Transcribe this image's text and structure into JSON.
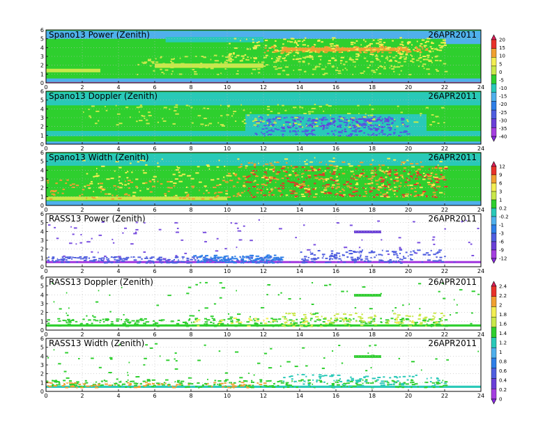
{
  "chart_data": [
    {
      "type": "heatmap",
      "title": "Spano13 Power (Zenith)",
      "date": "26APR2011",
      "background": "#2ecf2e",
      "x_ticks": [
        "0",
        "2",
        "4",
        "6",
        "8",
        "10",
        "12",
        "14",
        "16",
        "18",
        "20",
        "22",
        "24"
      ],
      "y_ticks": [
        "0",
        "1",
        "2",
        "3",
        "4",
        "5",
        "6"
      ],
      "xlim": [
        0,
        24
      ],
      "ylim": [
        0,
        6
      ],
      "colorbar": 0,
      "regions": [
        {
          "x0": 0,
          "x1": 24,
          "y0": 5.0,
          "y1": 5.9,
          "color": "#4fb0ec"
        },
        {
          "x0": 6.6,
          "x1": 12,
          "y0": 4.6,
          "y1": 5.2,
          "color": "#29c9b8"
        },
        {
          "x0": 0,
          "x1": 24,
          "y0": 0.1,
          "y1": 0.5,
          "color": "#4fb0ec"
        },
        {
          "x0": 0,
          "x1": 24,
          "y0": 0.0,
          "y1": 0.1,
          "color": "#d85ad0"
        },
        {
          "x0": 13,
          "x1": 20,
          "y0": 3.6,
          "y1": 4.0,
          "color": "#f0a030"
        },
        {
          "x0": 6,
          "x1": 12,
          "y0": 1.7,
          "y1": 2.2,
          "color": "#c9e84a"
        },
        {
          "x0": 0,
          "x1": 3,
          "y0": 1.2,
          "y1": 1.6,
          "color": "#c9e84a"
        },
        {
          "x0": 22,
          "x1": 24,
          "y0": 4.4,
          "y1": 5.0,
          "color": "#4fb0ec"
        }
      ],
      "scatter": [
        {
          "x0": 10,
          "x1": 22,
          "y0": 2.5,
          "y1": 5.2,
          "color": "#f3ee52",
          "count": 260
        },
        {
          "x0": 5,
          "x1": 22,
          "y0": 1.0,
          "y1": 3.2,
          "color": "#c9e84a",
          "count": 220
        },
        {
          "x0": 12,
          "x1": 21,
          "y0": 3.5,
          "y1": 4.2,
          "color": "#f0a030",
          "count": 120
        }
      ]
    },
    {
      "type": "heatmap",
      "title": "Spano13 Doppler (Zenith)",
      "date": "26APR2011",
      "background": "#2ecf2e",
      "x_ticks": [
        "0",
        "2",
        "4",
        "6",
        "8",
        "10",
        "12",
        "14",
        "16",
        "18",
        "20",
        "22",
        "24"
      ],
      "y_ticks": [
        "0",
        "1",
        "2",
        "3",
        "4",
        "5",
        "6"
      ],
      "xlim": [
        0,
        24
      ],
      "ylim": [
        0,
        6
      ],
      "colorbar": 0,
      "regions": [
        {
          "x0": 0,
          "x1": 24,
          "y0": 4.4,
          "y1": 5.9,
          "color": "#29c9b8"
        },
        {
          "x0": 0,
          "x1": 24,
          "y0": 0.9,
          "y1": 1.5,
          "color": "#29c9b8"
        },
        {
          "x0": 0,
          "x1": 24,
          "y0": 0.0,
          "y1": 0.3,
          "color": "#4fb0ec"
        },
        {
          "x0": 11,
          "x1": 21,
          "y0": 1.5,
          "y1": 3.4,
          "color": "#29c9b8"
        }
      ],
      "scatter": [
        {
          "x0": 11.5,
          "x1": 20,
          "y0": 1.0,
          "y1": 3.2,
          "color": "#4f5ee0",
          "count": 240
        },
        {
          "x0": 13,
          "x1": 19,
          "y0": 1.5,
          "y1": 3.0,
          "color": "#6a3fd8",
          "count": 70
        },
        {
          "x0": 2,
          "x1": 22,
          "y0": 2.0,
          "y1": 4.6,
          "color": "#c9e84a",
          "count": 160
        }
      ]
    },
    {
      "type": "heatmap",
      "title": "Spano13 Width (Zenith)",
      "date": "26APR2011",
      "background": "#2ecf2e",
      "x_ticks": [
        "0",
        "2",
        "4",
        "6",
        "8",
        "10",
        "12",
        "14",
        "16",
        "18",
        "20",
        "22",
        "24"
      ],
      "y_ticks": [
        "0",
        "1",
        "2",
        "3",
        "4",
        "5",
        "6"
      ],
      "xlim": [
        0,
        24
      ],
      "ylim": [
        0,
        6
      ],
      "colorbar": 1,
      "regions": [
        {
          "x0": 0,
          "x1": 24,
          "y0": 4.5,
          "y1": 5.9,
          "color": "#29c9b8"
        },
        {
          "x0": 0,
          "x1": 24,
          "y0": 0.0,
          "y1": 0.5,
          "color": "#4fb0ec"
        },
        {
          "x0": 0,
          "x1": 10,
          "y0": 0.6,
          "y1": 1.0,
          "color": "#c9e84a"
        }
      ],
      "scatter": [
        {
          "x0": 10,
          "x1": 22,
          "y0": 1.0,
          "y1": 5.0,
          "color": "#f0a030",
          "count": 260
        },
        {
          "x0": 11,
          "x1": 22,
          "y0": 1.0,
          "y1": 4.5,
          "color": "#e8322a",
          "count": 190
        },
        {
          "x0": 0,
          "x1": 10,
          "y0": 0.7,
          "y1": 3.0,
          "color": "#f0a030",
          "count": 90
        },
        {
          "x0": 2,
          "x1": 22,
          "y0": 1.0,
          "y1": 5.5,
          "color": "#f3ee52",
          "count": 200
        }
      ]
    },
    {
      "type": "heatmap",
      "title": "RASS13 Power (Zenith)",
      "date": "26APR2011",
      "background": "#ffffff",
      "x_ticks": [
        "0",
        "2",
        "4",
        "6",
        "8",
        "10",
        "12",
        "14",
        "16",
        "18",
        "20",
        "22",
        "24"
      ],
      "y_ticks": [
        "0",
        "1",
        "2",
        "3",
        "4",
        "5",
        "6"
      ],
      "xlim": [
        0,
        24
      ],
      "ylim": [
        0,
        6
      ],
      "colorbar": 1,
      "regions": [
        {
          "x0": 0,
          "x1": 24,
          "y0": 0.4,
          "y1": 0.65,
          "color": "#a53fe0"
        },
        {
          "x0": 17,
          "x1": 18.5,
          "y0": 3.8,
          "y1": 4.1,
          "color": "#6a3fd8"
        }
      ],
      "scatter": [
        {
          "x0": 0,
          "x1": 13,
          "y0": 0.5,
          "y1": 1.2,
          "color": "#4f5ee0",
          "count": 240
        },
        {
          "x0": 8,
          "x1": 13,
          "y0": 0.5,
          "y1": 1.4,
          "color": "#2e7fe8",
          "count": 120
        },
        {
          "x0": 14,
          "x1": 22,
          "y0": 0.5,
          "y1": 2.0,
          "color": "#4f5ee0",
          "count": 160
        },
        {
          "x0": 0,
          "x1": 24,
          "y0": 0.5,
          "y1": 5.5,
          "color": "#7a4fe0",
          "count": 90
        }
      ]
    },
    {
      "type": "heatmap",
      "title": "RASS13 Doppler (Zenith)",
      "date": "26APR2011",
      "background": "#ffffff",
      "x_ticks": [
        "0",
        "2",
        "4",
        "6",
        "8",
        "10",
        "12",
        "14",
        "16",
        "18",
        "20",
        "22",
        "24"
      ],
      "y_ticks": [
        "0",
        "1",
        "2",
        "3",
        "4",
        "5",
        "6"
      ],
      "xlim": [
        0,
        24
      ],
      "ylim": [
        0,
        6
      ],
      "colorbar": 2,
      "regions": [
        {
          "x0": 0,
          "x1": 24,
          "y0": 0.4,
          "y1": 0.65,
          "color": "#2ecf2e"
        },
        {
          "x0": 17,
          "x1": 18.5,
          "y0": 3.8,
          "y1": 4.1,
          "color": "#2ecf2e"
        }
      ],
      "scatter": [
        {
          "x0": 0,
          "x1": 22,
          "y0": 0.5,
          "y1": 1.4,
          "color": "#2ecf2e",
          "count": 260
        },
        {
          "x0": 13,
          "x1": 22,
          "y0": 0.5,
          "y1": 2.0,
          "color": "#c9e84a",
          "count": 110
        },
        {
          "x0": 0,
          "x1": 24,
          "y0": 0.5,
          "y1": 5.5,
          "color": "#2ecf2e",
          "count": 90
        },
        {
          "x0": 8,
          "x1": 22,
          "y0": 0.5,
          "y1": 1.5,
          "color": "#f3ee52",
          "count": 40
        }
      ]
    },
    {
      "type": "heatmap",
      "title": "RASS13 Width (Zenith)",
      "date": "26APR2011",
      "background": "#ffffff",
      "x_ticks": [
        "0",
        "2",
        "4",
        "6",
        "8",
        "10",
        "12",
        "14",
        "16",
        "18",
        "20",
        "22",
        "24"
      ],
      "y_ticks": [
        "0",
        "1",
        "2",
        "3",
        "4",
        "5",
        "6"
      ],
      "xlim": [
        0,
        24
      ],
      "ylim": [
        0,
        6
      ],
      "colorbar": 2,
      "regions": [
        {
          "x0": 0,
          "x1": 24,
          "y0": 0.4,
          "y1": 0.65,
          "color": "#29c9b8"
        },
        {
          "x0": 17,
          "x1": 18.5,
          "y0": 3.8,
          "y1": 4.1,
          "color": "#2ecf2e"
        }
      ],
      "scatter": [
        {
          "x0": 0,
          "x1": 22,
          "y0": 0.5,
          "y1": 1.4,
          "color": "#2ecf2e",
          "count": 220
        },
        {
          "x0": 0,
          "x1": 12,
          "y0": 0.5,
          "y1": 1.1,
          "color": "#f0a030",
          "count": 80
        },
        {
          "x0": 13,
          "x1": 22,
          "y0": 0.5,
          "y1": 2.0,
          "color": "#29c9b8",
          "count": 100
        },
        {
          "x0": 0,
          "x1": 24,
          "y0": 0.5,
          "y1": 5.5,
          "color": "#2ecf2e",
          "count": 90
        }
      ]
    }
  ],
  "colorbars": [
    {
      "labels": [
        "20",
        "15",
        "10",
        "5",
        "0",
        "-5",
        "-10",
        "-15",
        "-20",
        "-25",
        "-30",
        "-35",
        "-40"
      ],
      "colors": [
        "#e0205a",
        "#e8322a",
        "#f0a030",
        "#f3ee52",
        "#c9e84a",
        "#2ecf2e",
        "#29c9b8",
        "#4fb0ec",
        "#2e7fe8",
        "#4f5ee0",
        "#6a3fd8",
        "#a53fe0",
        "#8a2be2"
      ]
    },
    {
      "labels": [
        "12",
        "9",
        "6",
        "3",
        "1",
        "0.2",
        "-0.2",
        "-1",
        "-3",
        "-6",
        "-9",
        "-12"
      ],
      "colors": [
        "#e0205a",
        "#e8322a",
        "#f0a030",
        "#f3ee52",
        "#c9e84a",
        "#2ecf2e",
        "#29c9b8",
        "#4fb0ec",
        "#2e7fe8",
        "#4f5ee0",
        "#6a3fd8",
        "#a53fe0",
        "#8a2be2"
      ]
    },
    {
      "labels": [
        "2.4",
        "2.2",
        "2",
        "1.8",
        "1.6",
        "1.4",
        "1.2",
        "1",
        "0.8",
        "0.6",
        "0.4",
        "0.2",
        "0"
      ],
      "colors": [
        "#e0205a",
        "#e8322a",
        "#f0a030",
        "#f3ee52",
        "#c9e84a",
        "#2ecf2e",
        "#29c9b8",
        "#4fb0ec",
        "#2e7fe8",
        "#4f5ee0",
        "#6a3fd8",
        "#a53fe0",
        "#8a2be2"
      ]
    }
  ]
}
